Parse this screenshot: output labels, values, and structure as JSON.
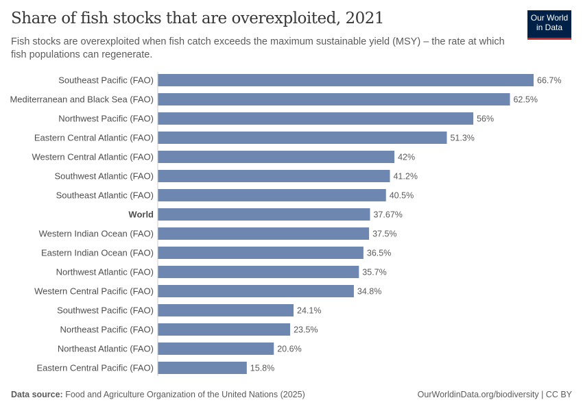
{
  "header": {
    "title": "Share of fish stocks that are overexploited, 2021",
    "subtitle": "Fish stocks are overexploited when fish catch exceeds the maximum sustainable yield (MSY) – the rate at which fish populations can regenerate.",
    "logo_line1": "Our World",
    "logo_line2": "in Data"
  },
  "footer": {
    "source_label": "Data source:",
    "source_text": "Food and Agriculture Organization of the United Nations (2025)",
    "credit": "OurWorldinData.org/biodiversity | CC BY"
  },
  "colors": {
    "bar": "#6d87b0",
    "logo_bg": "#002147",
    "logo_accent": "#ce261e"
  },
  "chart_data": {
    "type": "bar",
    "orientation": "horizontal",
    "title": "Share of fish stocks that are overexploited, 2021",
    "unit": "%",
    "categories": [
      "Southeast Pacific (FAO)",
      "Mediterranean and Black Sea (FAO)",
      "Northwest Pacific (FAO)",
      "Eastern Central Atlantic (FAO)",
      "Western Central Atlantic (FAO)",
      "Southwest Atlantic (FAO)",
      "Southeast Atlantic (FAO)",
      "World",
      "Western Indian Ocean (FAO)",
      "Eastern Indian Ocean (FAO)",
      "Northwest Atlantic (FAO)",
      "Western Central Pacific (FAO)",
      "Southwest Pacific (FAO)",
      "Northeast Pacific (FAO)",
      "Northeast Atlantic (FAO)",
      "Eastern Central Pacific (FAO)"
    ],
    "values": [
      66.7,
      62.5,
      56,
      51.3,
      42,
      41.2,
      40.5,
      37.67,
      37.5,
      36.5,
      35.7,
      34.8,
      24.1,
      23.5,
      20.6,
      15.8
    ],
    "labels": [
      "66.7%",
      "62.5%",
      "56%",
      "51.3%",
      "42%",
      "41.2%",
      "40.5%",
      "37.67%",
      "37.5%",
      "36.5%",
      "35.7%",
      "34.8%",
      "24.1%",
      "23.5%",
      "20.6%",
      "15.8%"
    ],
    "bold_categories": [
      "World"
    ],
    "xlim": [
      0,
      66.7
    ],
    "grid": false
  }
}
